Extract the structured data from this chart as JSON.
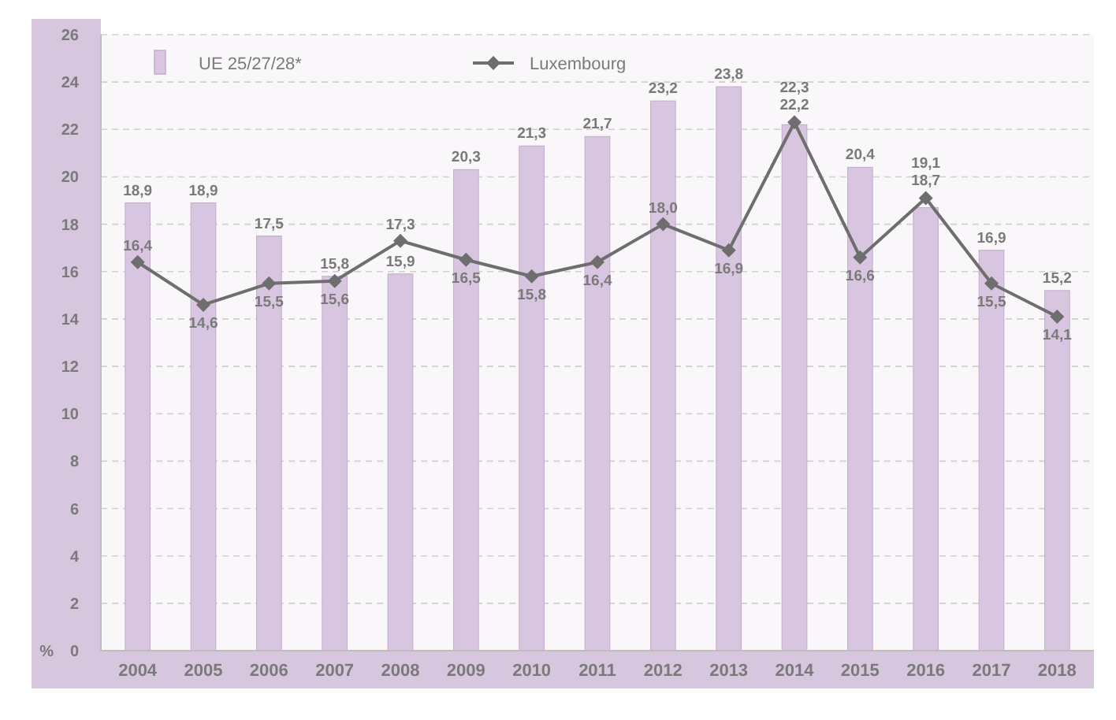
{
  "chart_data": {
    "type": "bar",
    "categories": [
      "2004",
      "2005",
      "2006",
      "2007",
      "2008",
      "2009",
      "2010",
      "2011",
      "2012",
      "2013",
      "2014",
      "2015",
      "2016",
      "2017",
      "2018"
    ],
    "series": [
      {
        "name": "UE 25/27/28*",
        "color": "#d8c6e0",
        "values": [
          18.9,
          18.9,
          17.5,
          15.8,
          15.9,
          20.3,
          21.3,
          21.7,
          23.2,
          23.8,
          22.2,
          20.4,
          18.7,
          16.9,
          15.2
        ],
        "value_labels": [
          "18,9",
          "18,9",
          "17,5",
          "15,8",
          "15,9",
          "20,3",
          "21,3",
          "21,7",
          "23,2",
          "23,8",
          "22,2",
          "20,4",
          "18,7",
          "16,9",
          "15,2"
        ]
      },
      {
        "name": "Luxembourg",
        "type": "line",
        "color": "#6e6e6e",
        "values": [
          16.4,
          14.6,
          15.5,
          15.6,
          17.3,
          16.5,
          15.8,
          16.4,
          18.0,
          16.9,
          22.3,
          16.6,
          19.1,
          15.5,
          14.1
        ],
        "value_labels": [
          "16,4",
          "14,6",
          "15,5",
          "15,6",
          "17,3",
          "16,5",
          "15,8",
          "16,4",
          "18,0",
          "16,9",
          "22,3",
          "16,6",
          "19,1",
          "15,5",
          "14,1"
        ]
      }
    ],
    "ylabel": "%",
    "ylim": [
      0,
      26
    ],
    "yticks": [
      0,
      2,
      4,
      6,
      8,
      10,
      12,
      14,
      16,
      18,
      20,
      22,
      24,
      26
    ],
    "grid": "y",
    "legend": "top left",
    "marker": "diamond"
  }
}
